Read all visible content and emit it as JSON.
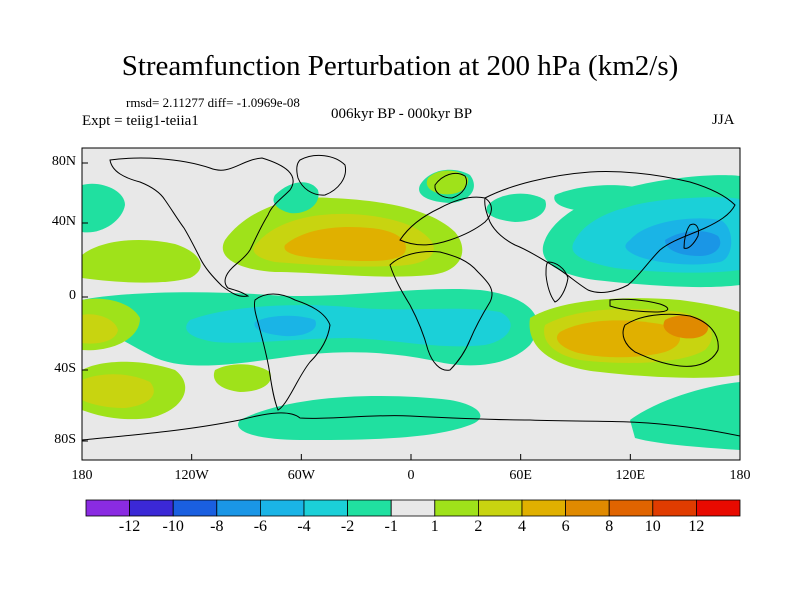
{
  "title": "Streamfunction Perturbation at 200 hPa (km2/s)",
  "stats": "rmsd= 2.11277 diff= -1.0969e-08",
  "center_label": "006kyr BP - 000kyr BP",
  "experiment": "Expt = teiig1-teiia1",
  "season": "JJA",
  "lat_ticks": [
    "80N",
    "40N",
    "0",
    "40S",
    "80S"
  ],
  "lon_ticks": [
    "180",
    "120W",
    "60W",
    "0",
    "60E",
    "120E",
    "180"
  ],
  "colorbar": {
    "colors": [
      "#8a2be2",
      "#3b28d6",
      "#1a5fe0",
      "#1a96e6",
      "#1ab4e6",
      "#1bd0d8",
      "#20e0a0",
      "#e8e8e8",
      "#9fe21a",
      "#c8d410",
      "#e0b000",
      "#e08a00",
      "#e06400",
      "#e03c00",
      "#e80a00"
    ],
    "labels": [
      "-12",
      "-10",
      "-8",
      "-6",
      "-4",
      "-2",
      "-1",
      "1",
      "2",
      "4",
      "6",
      "8",
      "10",
      "12"
    ]
  },
  "map": {
    "background_color": "#e8e8e8",
    "coastline_color": "#000000"
  }
}
